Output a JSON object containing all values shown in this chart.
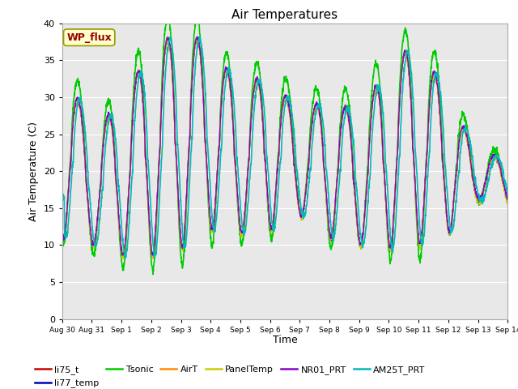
{
  "title": "Air Temperatures",
  "xlabel": "Time",
  "ylabel": "Air Temperature (C)",
  "ylim": [
    0,
    40
  ],
  "yticks": [
    0,
    5,
    10,
    15,
    20,
    25,
    30,
    35,
    40
  ],
  "bg_color": "#e8e8e8",
  "fig_color": "#ffffff",
  "series": [
    {
      "label": "li75_t",
      "color": "#cc0000",
      "lw": 1.0
    },
    {
      "label": "li77_temp",
      "color": "#0000bb",
      "lw": 1.0
    },
    {
      "label": "Tsonic",
      "color": "#00cc00",
      "lw": 1.2
    },
    {
      "label": "AirT",
      "color": "#ff8800",
      "lw": 1.0
    },
    {
      "label": "PanelTemp",
      "color": "#cccc00",
      "lw": 1.0
    },
    {
      "label": "NR01_PRT",
      "color": "#8800cc",
      "lw": 1.0
    },
    {
      "label": "AM25T_PRT",
      "color": "#00bbbb",
      "lw": 1.2
    }
  ],
  "xtick_labels": [
    "Aug 30",
    "Aug 31",
    "Sep 1",
    "Sep 2",
    "Sep 3",
    "Sep 4",
    "Sep 5",
    "Sep 6",
    "Sep 7",
    "Sep 8",
    "Sep 9",
    "Sep 10",
    "Sep 11",
    "Sep 12",
    "Sep 13",
    "Sep 14"
  ],
  "n_days": 15,
  "wp_flux_label": "WP_flux",
  "wp_flux_bg": "#ffffcc",
  "wp_flux_edge": "#999900",
  "wp_flux_text_color": "#990000",
  "peak_maxes": [
    35,
    25,
    29.5,
    36.5,
    39,
    37,
    31,
    33.5,
    27,
    30.5,
    27,
    35,
    37,
    30,
    22
  ],
  "peak_mins": [
    11,
    10,
    8.5,
    8.5,
    9.5,
    12,
    11.5,
    12,
    14,
    11,
    10,
    9.5,
    10,
    11.5,
    16
  ],
  "tsonic_extra": [
    3.5,
    0,
    0,
    1.5,
    0,
    0,
    0,
    1,
    3.5,
    0,
    3.5,
    1.5,
    0.5,
    3.5,
    0
  ],
  "am25t_lag": 0.08
}
